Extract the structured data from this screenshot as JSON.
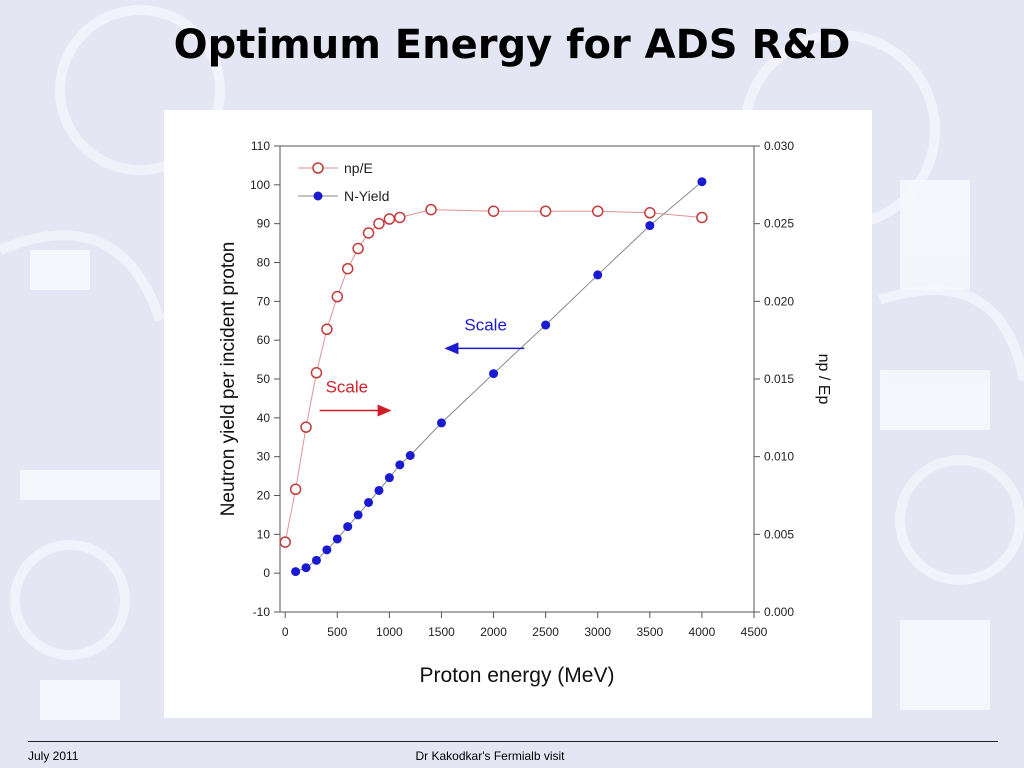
{
  "slide": {
    "title": "Optimum Energy for ADS R&D",
    "footer_left": "July 2011",
    "footer_center": "Dr Kakodkar's Fermialb visit"
  },
  "colors": {
    "background": "#e4e6f4",
    "np_series": "#c43a3a",
    "nyield_series": "#1a1ad0",
    "scale_red": "#d11f2a",
    "scale_blue": "#1a1ad0"
  },
  "chart_data": {
    "type": "line",
    "xlabel": "Proton energy (MeV)",
    "ylabel": "Neutron yield per incident proton",
    "y2label": "np / Ep",
    "xlim": [
      -50,
      4500
    ],
    "ylim": [
      -10,
      110
    ],
    "y2lim": [
      0.0,
      0.03
    ],
    "xticks": [
      0,
      500,
      1000,
      1500,
      2000,
      2500,
      3000,
      3500,
      4000,
      4500
    ],
    "yticks": [
      -10,
      0,
      10,
      20,
      30,
      40,
      50,
      60,
      70,
      80,
      90,
      100,
      110
    ],
    "y2ticks": [
      "0.000",
      "0.005",
      "0.010",
      "0.015",
      "0.020",
      "0.025",
      "0.030"
    ],
    "legend_position": "top-left",
    "grid": false,
    "series": [
      {
        "name": "np/E",
        "axis": "right",
        "marker": "open-circle",
        "x": [
          0,
          100,
          200,
          300,
          400,
          500,
          600,
          700,
          800,
          900,
          1000,
          1100,
          1400,
          2000,
          2500,
          3000,
          3500,
          4000
        ],
        "values": [
          0.0045,
          0.0079,
          0.0119,
          0.0154,
          0.0182,
          0.0203,
          0.0221,
          0.0234,
          0.0244,
          0.025,
          0.0253,
          0.0254,
          0.0259,
          0.0258,
          0.0258,
          0.0258,
          0.0257,
          0.0254
        ]
      },
      {
        "name": "N-Yield",
        "axis": "left",
        "marker": "filled-circle",
        "x": [
          100,
          200,
          300,
          400,
          500,
          600,
          700,
          800,
          900,
          1000,
          1100,
          1200,
          1500,
          2000,
          2500,
          3000,
          3500,
          4000
        ],
        "values": [
          0.4,
          1.4,
          3.3,
          6.0,
          8.8,
          12.0,
          15.0,
          18.2,
          21.3,
          24.6,
          27.9,
          30.3,
          38.7,
          51.4,
          63.9,
          76.8,
          89.5,
          100.8
        ]
      }
    ],
    "annotations": [
      {
        "text": "Scale",
        "x": 330,
        "y": 46,
        "color": "red",
        "arrow": "right"
      },
      {
        "text": "Scale",
        "x": 1720,
        "y": 62,
        "color": "blue",
        "arrow": "left"
      }
    ]
  }
}
